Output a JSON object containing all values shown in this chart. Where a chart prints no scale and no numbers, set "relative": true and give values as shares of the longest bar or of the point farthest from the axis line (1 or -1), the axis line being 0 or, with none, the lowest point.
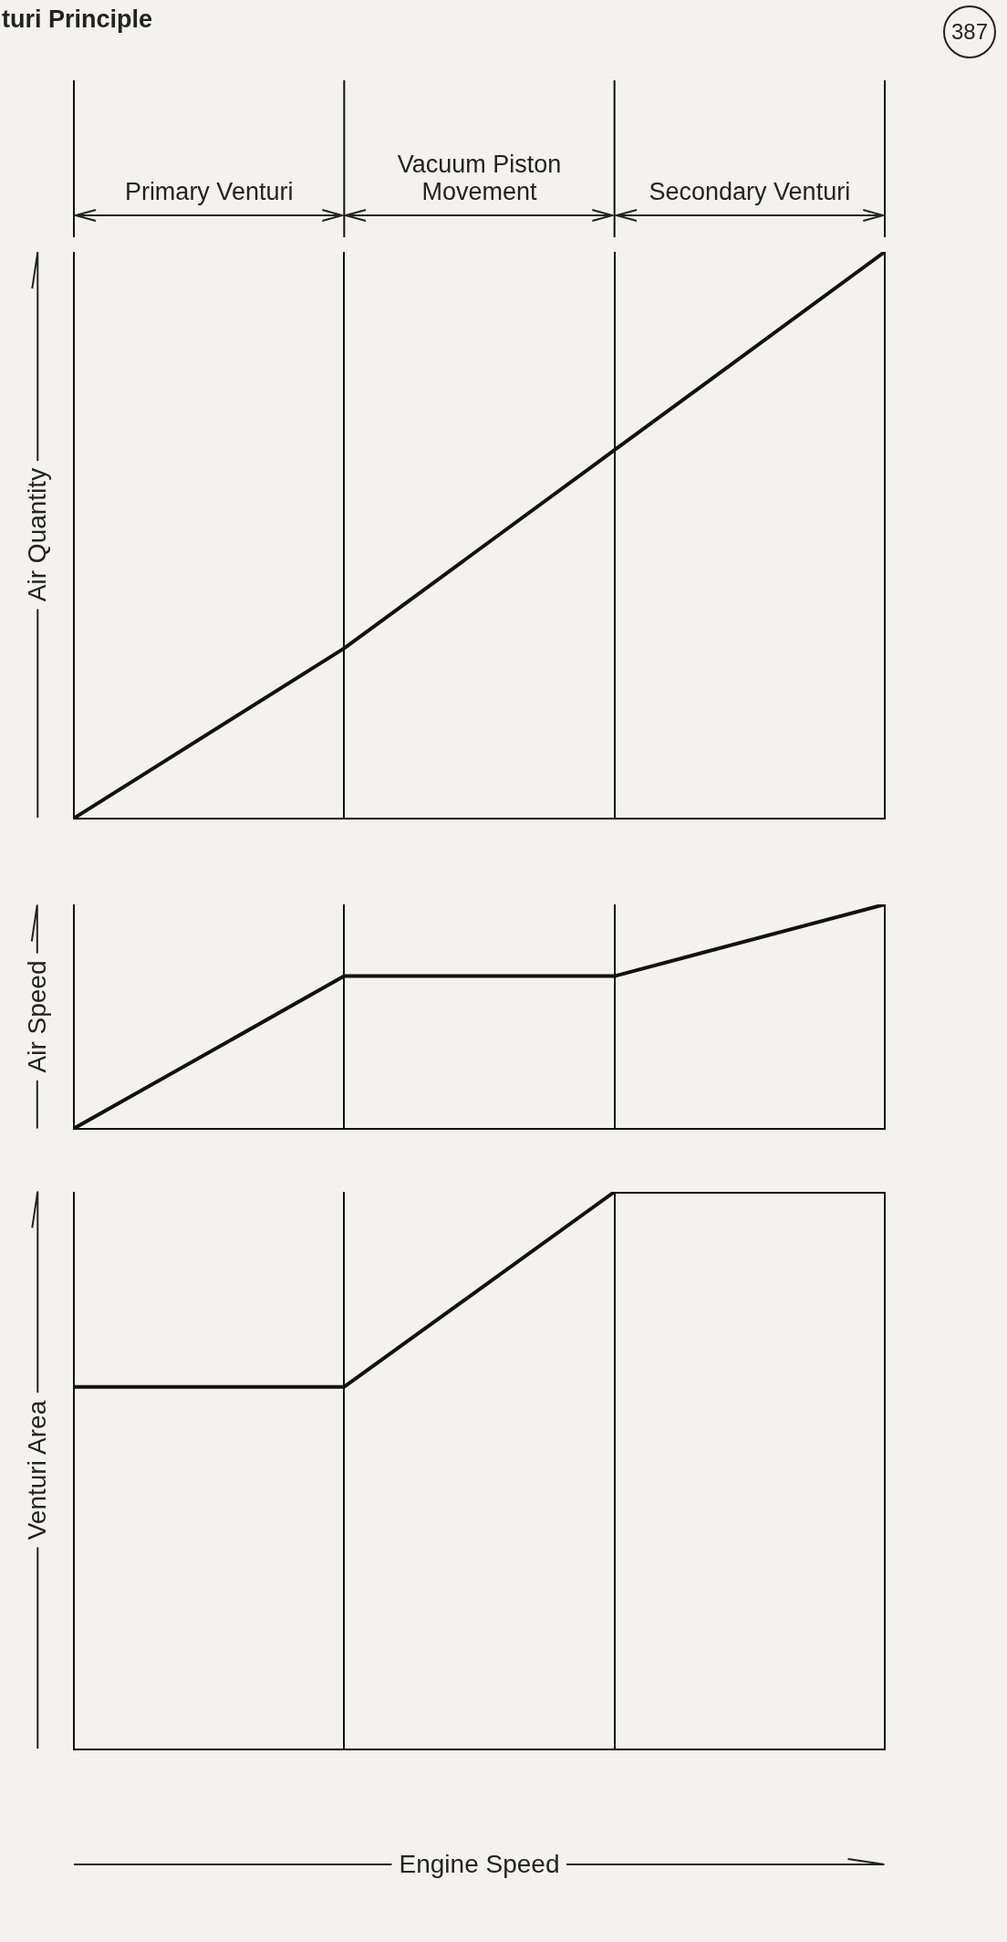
{
  "chart_data": [
    {
      "type": "line",
      "title": "turi Principle",
      "annotations": [
        "Primary Venturi",
        "Vacuum Piston Movement",
        "Secondary Venturi",
        "387"
      ],
      "ylabel": "Air Quantity",
      "categories": [
        null,
        null,
        null,
        null
      ],
      "relative": true,
      "grid": "x",
      "legend": false,
      "series": [
        {
          "color": "#111111",
          "values": [
            0,
            0.3,
            0.65,
            1
          ]
        }
      ]
    },
    {
      "type": "line",
      "ylabel": "Air Speed",
      "categories": [
        null,
        null,
        null,
        null
      ],
      "relative": true,
      "grid": "x",
      "legend": false,
      "series": [
        {
          "color": "#111111",
          "values": [
            0,
            0.68,
            0.68,
            1
          ]
        }
      ]
    },
    {
      "type": "line",
      "ylabel": "Venturi Area",
      "xlabel": "Engine Speed",
      "categories": [
        null,
        null,
        null,
        null
      ],
      "relative": true,
      "grid": "x",
      "legend": false,
      "series": [
        {
          "color": "#111111",
          "values": [
            0.65,
            0.65,
            1,
            1
          ]
        }
      ]
    }
  ]
}
